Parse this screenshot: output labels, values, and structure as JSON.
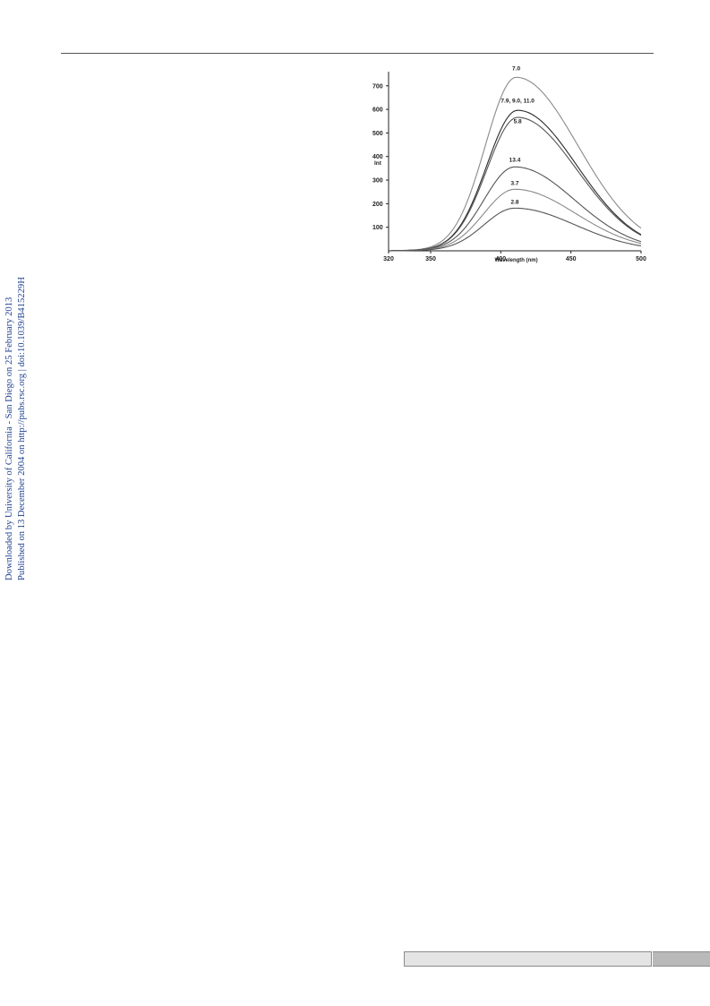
{
  "sidebar": {
    "line1": "Downloaded by University of California - San Diego on 25 February 2013",
    "line2": "Published on 13 December 2004 on http://pubs.rsc.org | doi:10.1039/B415229H"
  },
  "chart_data": {
    "type": "line",
    "xlabel": "Wavelength (nm)",
    "ylabel": "Int",
    "xlim": [
      320,
      500
    ],
    "ylim": [
      0,
      760
    ],
    "xticks": [
      320,
      350,
      400,
      450,
      500
    ],
    "yticks": [
      100,
      200,
      300,
      400,
      500,
      600,
      700
    ],
    "grid": false,
    "colors": {
      "axis": "#222222",
      "light_curve": "#8a8a8a",
      "mid_curve": "#555555",
      "dark_curve": "#2a2a2a"
    },
    "series": [
      {
        "name": "7.0",
        "peak_x": 411,
        "peak_y": 735,
        "end_y": 95
      },
      {
        "name": "7.9, 9.0, 11.0",
        "peak_x": 412,
        "peak_y": 595,
        "end_y": 68
      },
      {
        "name": "5.8",
        "peak_x": 412,
        "peak_y": 565,
        "end_y": 65
      },
      {
        "name": "13.4",
        "peak_x": 410,
        "peak_y": 355,
        "end_y": 38
      },
      {
        "name": "3.7",
        "peak_x": 410,
        "peak_y": 260,
        "end_y": 30
      },
      {
        "name": "2.8",
        "peak_x": 410,
        "peak_y": 180,
        "end_y": 20
      }
    ],
    "series_labels": [
      "7.0",
      "7.9, 9.0, 11.0",
      "5.8",
      "13.4",
      "3.7",
      "2.8"
    ]
  }
}
